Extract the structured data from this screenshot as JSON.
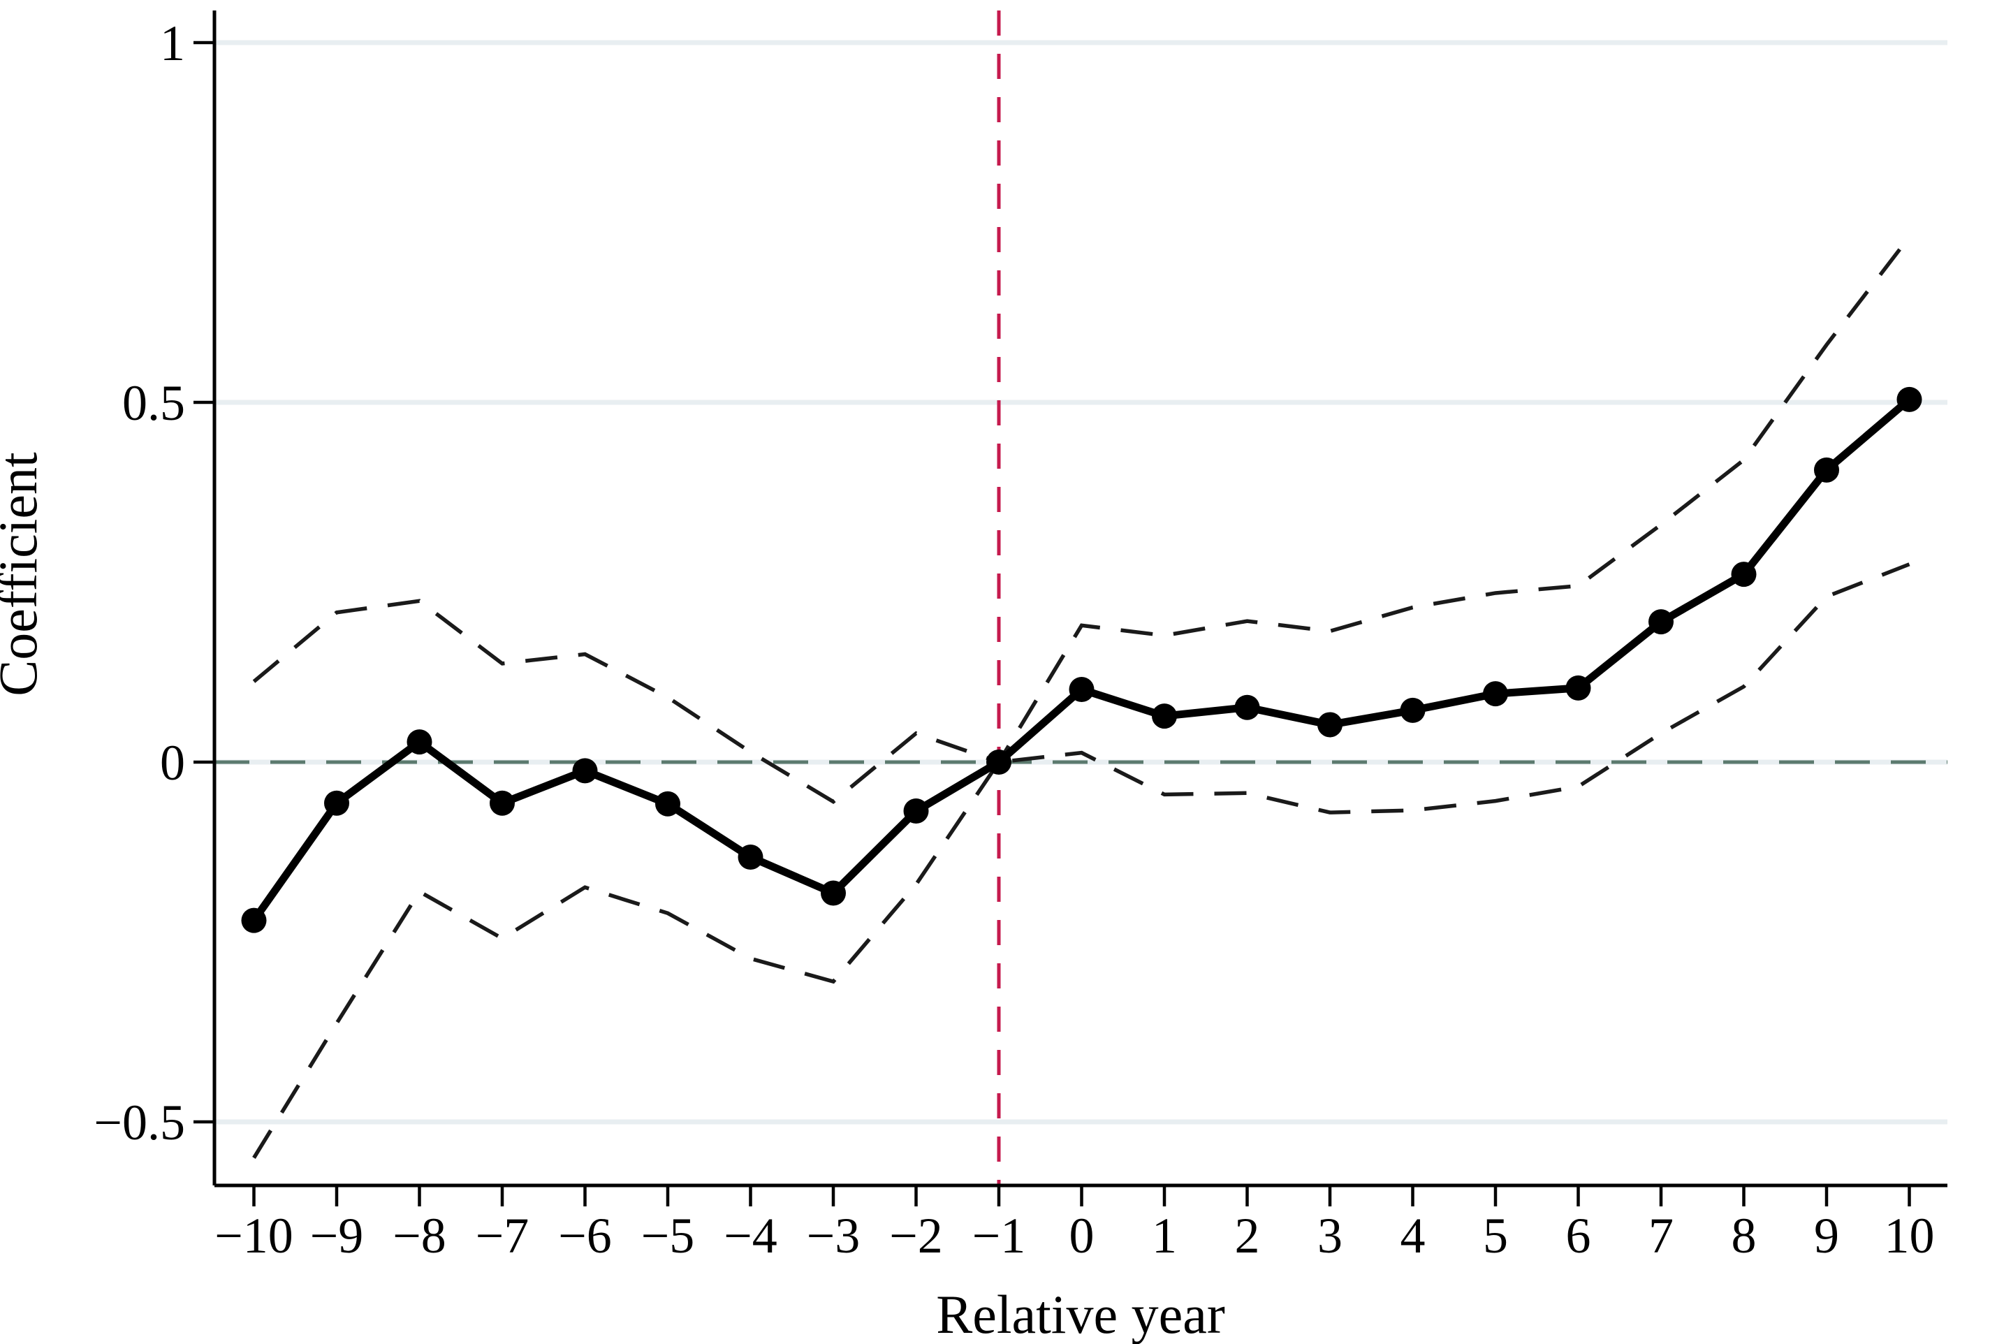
{
  "chart_data": {
    "type": "line",
    "title": "",
    "xlabel": "Relative year",
    "ylabel": "Coefficient",
    "x": [
      -10,
      -9,
      -8,
      -7,
      -6,
      -5,
      -4,
      -3,
      -2,
      -1,
      0,
      1,
      2,
      3,
      4,
      5,
      6,
      7,
      8,
      9,
      10
    ],
    "series": [
      {
        "name": "Point estimate",
        "style": "solid-line-with-circle-markers",
        "values": [
          -0.22,
          -0.057,
          0.028,
          -0.057,
          -0.012,
          -0.058,
          -0.132,
          -0.182,
          -0.068,
          0,
          0.101,
          0.064,
          0.076,
          0.052,
          0.072,
          0.095,
          0.103,
          0.195,
          0.261,
          0.406,
          0.504
        ]
      },
      {
        "name": "Confidence interval upper bound",
        "style": "dashed-line",
        "values": [
          0.112,
          0.208,
          0.224,
          0.137,
          0.15,
          0.09,
          0.014,
          -0.055,
          0.04,
          0,
          0.19,
          0.176,
          0.196,
          0.182,
          0.215,
          0.235,
          0.245,
          0.33,
          0.42,
          0.58,
          0.73
        ]
      },
      {
        "name": "Confidence interval lower bound",
        "style": "dashed-line",
        "values": [
          -0.55,
          -0.363,
          -0.18,
          -0.245,
          -0.174,
          -0.21,
          -0.273,
          -0.305,
          -0.17,
          0,
          0.013,
          -0.045,
          -0.043,
          -0.07,
          -0.067,
          -0.054,
          -0.034,
          0.04,
          0.105,
          0.23,
          0.275
        ]
      }
    ],
    "x_tick_labels": [
      "−10",
      "−9",
      "−8",
      "−7",
      "−6",
      "−5",
      "−4",
      "−3",
      "−2",
      "−1",
      "0",
      "1",
      "2",
      "3",
      "4",
      "5",
      "6",
      "7",
      "8",
      "9",
      "10"
    ],
    "x_tick_values": [
      -10,
      -9,
      -8,
      -7,
      -6,
      -5,
      -4,
      -3,
      -2,
      -1,
      0,
      1,
      2,
      3,
      4,
      5,
      6,
      7,
      8,
      9,
      10
    ],
    "y_tick_labels": [
      "1",
      "0.5",
      "0",
      "−0.5"
    ],
    "y_tick_values": [
      1,
      0.5,
      0,
      -0.5
    ],
    "xlim": [
      -10.5,
      10.9
    ],
    "ylim": [
      -0.59,
      1.02
    ],
    "grid": "horizontal-light-gridlines",
    "legend_position": "none",
    "reference_lines": [
      {
        "axis": "x",
        "value": -1,
        "style": "dashed",
        "meaning": "treatment reference year"
      },
      {
        "axis": "y",
        "value": 0,
        "style": "dashed",
        "meaning": "zero coefficient line"
      }
    ],
    "colors": {
      "line": "#000000",
      "ci_line": "#1a1a1a",
      "ref_line": "#c51a4d",
      "zero_line": "#5c7a6e",
      "gridline": "#e8eef1",
      "background": "#ffffff"
    }
  }
}
